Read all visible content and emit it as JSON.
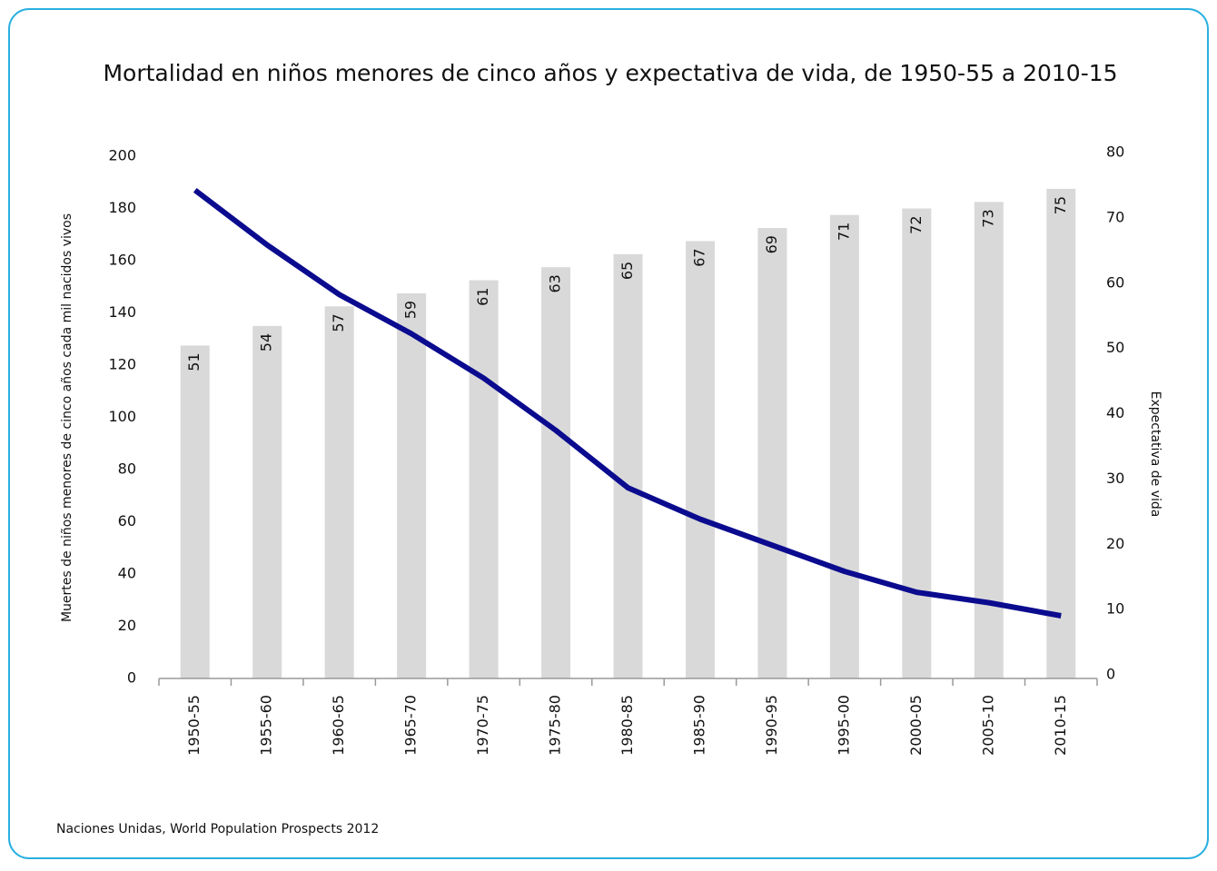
{
  "chart_data": {
    "type": "bar_line",
    "title": "Mortalidad en niños menores de cinco años y expectativa de vida, de 1950-55 a 2010-15",
    "y_label": "Muertes de niños menores de cinco años cada mil nacidos vivos",
    "y2_label": "Expectativa de vida",
    "source": "Naciones Unidas, World Population Prospects 2012",
    "categories": [
      "1950-55",
      "1955-60",
      "1960-65",
      "1965-70",
      "1970-75",
      "1975-80",
      "1980-85",
      "1985-90",
      "1990-95",
      "1995-00",
      "2000-05",
      "2005-10",
      "2010-15"
    ],
    "series": [
      {
        "name": "Expectativa de vida",
        "type": "bar",
        "axis": "y2",
        "color": "#d9d9d9",
        "values": [
          51,
          54,
          57,
          59,
          61,
          63,
          65,
          67,
          69,
          71,
          72,
          73,
          75
        ]
      },
      {
        "name": "Mortalidad",
        "type": "line",
        "axis": "y",
        "color": "#0b0b8f",
        "values": [
          187,
          166,
          147,
          132,
          115,
          95,
          73,
          61,
          51,
          41,
          33,
          29,
          24
        ]
      }
    ],
    "ylim": [
      0,
      200
    ],
    "yticks": [
      0,
      20,
      40,
      60,
      80,
      100,
      120,
      140,
      160,
      180,
      200
    ],
    "y2lim": [
      0,
      80
    ],
    "y2ticks": [
      0,
      10,
      20,
      30,
      40,
      50,
      60,
      70,
      80
    ]
  }
}
